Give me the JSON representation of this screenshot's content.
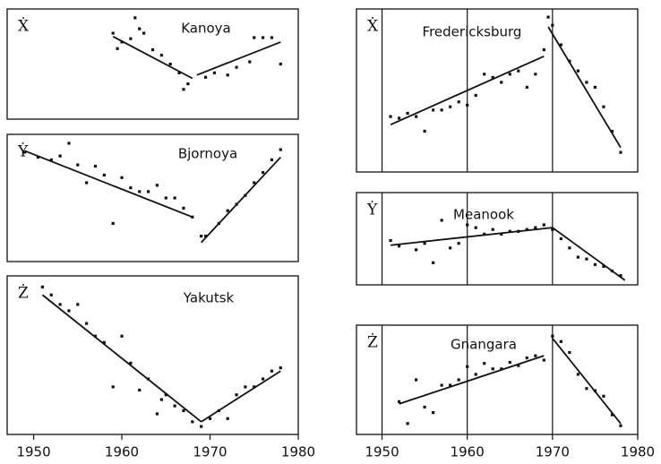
{
  "chart_data": [
    {
      "type": "scatter",
      "title": "Kanoya",
      "ylabel": "Ẋ",
      "xlim": [
        1947,
        1980
      ],
      "ylim": [
        0,
        100
      ],
      "x": [
        1959,
        1959.5,
        1960,
        1961,
        1961.5,
        1962,
        1962.5,
        1963.5,
        1964.5,
        1965.5,
        1966.5,
        1967,
        1967.5,
        1969.5,
        1970.5,
        1972,
        1973,
        1974.5,
        1975,
        1976,
        1977,
        1978
      ],
      "values": [
        78,
        64,
        70,
        73,
        92,
        82,
        78,
        63,
        58,
        50,
        42,
        27,
        32,
        38,
        42,
        40,
        47,
        52,
        74,
        74,
        74,
        50
      ],
      "fits": [
        {
          "x": [
            1959,
            1968
          ],
          "values": [
            75,
            37
          ]
        },
        {
          "x": [
            1968.5,
            1978
          ],
          "values": [
            40,
            70
          ]
        }
      ]
    },
    {
      "type": "scatter",
      "title": "Bjornoya",
      "ylabel": "Ẏ",
      "xlim": [
        1947,
        1980
      ],
      "ylim": [
        0,
        100
      ],
      "x": [
        1949,
        1950.5,
        1952,
        1953,
        1954,
        1955,
        1956,
        1957,
        1958,
        1959,
        1960,
        1961,
        1962,
        1963,
        1964,
        1965,
        1966,
        1967,
        1968,
        1969,
        1969.5,
        1971,
        1972,
        1973,
        1974,
        1975,
        1976,
        1977,
        1978
      ],
      "values": [
        86,
        82,
        80,
        83,
        93,
        76,
        62,
        75,
        68,
        30,
        66,
        58,
        55,
        55,
        60,
        50,
        50,
        42,
        35,
        20,
        20,
        30,
        40,
        45,
        52,
        62,
        70,
        80,
        88
      ],
      "fits": [
        {
          "x": [
            1949,
            1968
          ],
          "values": [
            87,
            35
          ]
        },
        {
          "x": [
            1969,
            1978
          ],
          "values": [
            15,
            82
          ]
        }
      ]
    },
    {
      "type": "scatter",
      "title": "Yakutsk",
      "ylabel": "Ż",
      "xlim": [
        1947,
        1980
      ],
      "ylim": [
        0,
        100
      ],
      "x": [
        1951,
        1952,
        1953,
        1954,
        1955,
        1956,
        1957,
        1958,
        1959,
        1960,
        1961,
        1962,
        1963,
        1964,
        1964.5,
        1965,
        1966,
        1967,
        1968,
        1969,
        1970,
        1971,
        1972,
        1973,
        1974,
        1975,
        1976,
        1977,
        1978
      ],
      "values": [
        93,
        88,
        82,
        78,
        82,
        70,
        62,
        58,
        30,
        62,
        45,
        28,
        35,
        13,
        22,
        25,
        18,
        15,
        8,
        5,
        10,
        15,
        10,
        25,
        30,
        30,
        35,
        40,
        42
      ],
      "fits": [
        {
          "x": [
            1951,
            1969
          ],
          "values": [
            88,
            8
          ]
        },
        {
          "x": [
            1969,
            1978
          ],
          "values": [
            8,
            40
          ]
        }
      ],
      "xticks": [
        1950,
        1960,
        1970,
        1980
      ]
    },
    {
      "type": "scatter",
      "title": "Fredericksburg",
      "ylabel": "Ẋ",
      "xlim": [
        1947,
        1980
      ],
      "ylim": [
        0,
        100
      ],
      "vlines": [
        1950,
        1960,
        1970
      ],
      "x": [
        1951,
        1952,
        1953,
        1954,
        1955,
        1956,
        1957,
        1958,
        1959,
        1960,
        1961,
        1962,
        1963,
        1964,
        1965,
        1966,
        1967,
        1968,
        1969,
        1969.5,
        1970,
        1971,
        1972,
        1973,
        1974,
        1975,
        1976,
        1977,
        1978
      ],
      "values": [
        34,
        33,
        36,
        34,
        25,
        38,
        38,
        40,
        43,
        41,
        47,
        60,
        58,
        55,
        60,
        62,
        52,
        60,
        75,
        95,
        90,
        78,
        68,
        62,
        55,
        52,
        40,
        25,
        12
      ],
      "fits": [
        {
          "x": [
            1951,
            1969
          ],
          "values": [
            29,
            71
          ]
        },
        {
          "x": [
            1969.5,
            1978
          ],
          "values": [
            89,
            15
          ]
        }
      ]
    },
    {
      "type": "scatter",
      "title": "Meanook",
      "ylabel": "Ẏ",
      "xlim": [
        1947,
        1980
      ],
      "ylim": [
        0,
        100
      ],
      "vlines": [
        1950,
        1960,
        1970
      ],
      "x": [
        1951,
        1952,
        1954,
        1955,
        1956,
        1957,
        1958,
        1959,
        1960,
        1961,
        1962,
        1963,
        1964,
        1965,
        1966,
        1967,
        1968,
        1969,
        1970,
        1971,
        1972,
        1973,
        1974,
        1975,
        1976,
        1977,
        1978
      ],
      "values": [
        48,
        42,
        38,
        45,
        24,
        70,
        40,
        45,
        65,
        62,
        55,
        60,
        55,
        58,
        58,
        60,
        62,
        65,
        60,
        50,
        40,
        30,
        28,
        22,
        20,
        15,
        10
      ],
      "fits": [
        {
          "x": [
            1951,
            1970
          ],
          "values": [
            43,
            62
          ]
        },
        {
          "x": [
            1970,
            1978.5
          ],
          "values": [
            62,
            5
          ]
        }
      ]
    },
    {
      "type": "scatter",
      "title": "Gnangara",
      "ylabel": "Ż",
      "xlim": [
        1947,
        1980
      ],
      "ylim": [
        0,
        100
      ],
      "vlines": [
        1950,
        1960,
        1970
      ],
      "x": [
        1952,
        1953,
        1954,
        1955,
        1956,
        1957,
        1958,
        1959,
        1960,
        1961,
        1962,
        1963,
        1964,
        1965,
        1966,
        1967,
        1968,
        1969,
        1970,
        1971,
        1972,
        1973,
        1974,
        1975,
        1976,
        1977,
        1978
      ],
      "values": [
        30,
        10,
        50,
        25,
        20,
        45,
        45,
        50,
        62,
        55,
        65,
        60,
        60,
        66,
        63,
        70,
        72,
        68,
        90,
        85,
        75,
        55,
        42,
        40,
        35,
        18,
        8
      ],
      "fits": [
        {
          "x": [
            1952,
            1969
          ],
          "values": [
            28,
            72
          ]
        },
        {
          "x": [
            1970,
            1978
          ],
          "values": [
            88,
            10
          ]
        }
      ],
      "xticks": [
        1950,
        1960,
        1970,
        1980
      ]
    }
  ]
}
